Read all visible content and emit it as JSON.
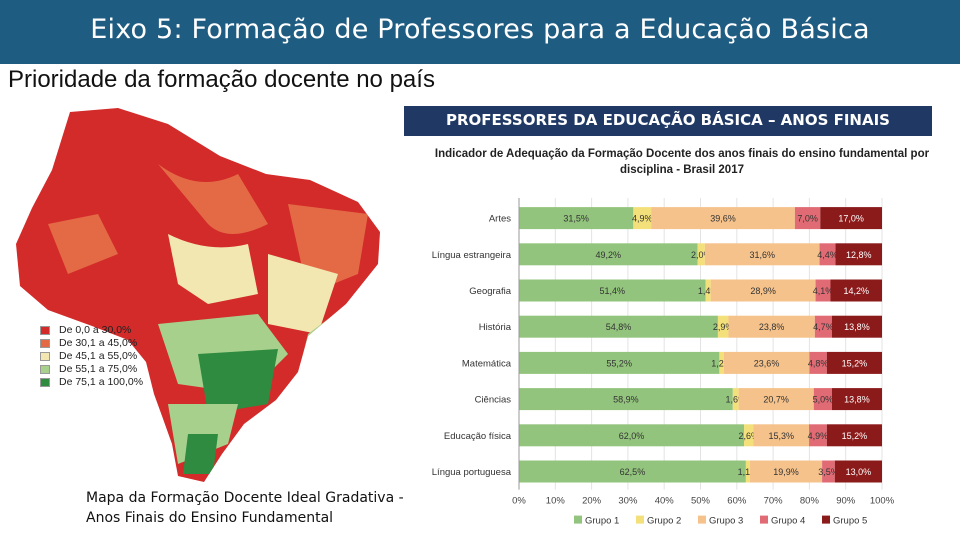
{
  "header": {
    "title": "Eixo 5: Formação de Professores para a Educação Básica",
    "subtitle": "Prioridade da formação docente no país"
  },
  "map": {
    "caption_line1": "Mapa da Formação Docente Ideal  Gradativa -",
    "caption_line2": "Anos Finais do Ensino Fundamental",
    "legend": [
      {
        "label": "De 0,0 a 30,0%",
        "color": "#d32a2a"
      },
      {
        "label": "De 30,1 a 45,0%",
        "color": "#e46a45"
      },
      {
        "label": "De 45,1 a 55,0%",
        "color": "#f2e7b0"
      },
      {
        "label": "De 55,1 a 75,0%",
        "color": "#a8d08d"
      },
      {
        "label": "De 75,1 a 100,0%",
        "color": "#2e8b3f"
      }
    ]
  },
  "chart_data": {
    "type": "bar",
    "orientation": "horizontal",
    "stacked": true,
    "banner": "PROFESSORES DA EDUCAÇÃO BÁSICA – ANOS FINAIS",
    "title_line1": "Indicador de Adequação da Formação Docente dos anos finais do ensino fundamental por",
    "title_line2": "disciplina - Brasil 2017",
    "categories": [
      "Artes",
      "Língua estrangeira",
      "Geografia",
      "História",
      "Matemática",
      "Ciências",
      "Educação física",
      "Língua portuguesa"
    ],
    "xlim": [
      0,
      100
    ],
    "xticks": [
      "0%",
      "10%",
      "20%",
      "30%",
      "40%",
      "50%",
      "60%",
      "70%",
      "80%",
      "90%",
      "100%"
    ],
    "legend_position": "bottom",
    "series": [
      {
        "name": "Grupo 1",
        "color": "#93c47d",
        "values": [
          31.5,
          49.2,
          51.4,
          54.8,
          55.2,
          58.9,
          62.0,
          62.5
        ],
        "labels": [
          "31,5%",
          "49,2%",
          "51,4%",
          "54,8%",
          "55,2%",
          "58,9%",
          "62,0%",
          "62,5%"
        ]
      },
      {
        "name": "Grupo 2",
        "color": "#f3e07a",
        "values": [
          4.9,
          2.0,
          1.4,
          2.9,
          1.2,
          1.6,
          2.6,
          1.1
        ],
        "labels": [
          "4,9%",
          "2,0%",
          "1,4%",
          "2,9%",
          "1,2%",
          "1,6%",
          "2,6%",
          "1,1%"
        ]
      },
      {
        "name": "Grupo 3",
        "color": "#f5c28b",
        "values": [
          39.6,
          31.6,
          28.9,
          23.8,
          23.6,
          20.7,
          15.3,
          19.9
        ],
        "labels": [
          "39,6%",
          "31,6%",
          "28,9%",
          "23,8%",
          "23,6%",
          "20,7%",
          "15,3%",
          "19,9%"
        ]
      },
      {
        "name": "Grupo 4",
        "color": "#e06b74",
        "values": [
          7.0,
          4.4,
          4.1,
          4.7,
          4.8,
          5.0,
          4.9,
          3.5
        ],
        "labels": [
          "7,0%",
          "4,4%",
          "4,1%",
          "4,7%",
          "4,8%",
          "5,0%",
          "4,9%",
          "3,5%"
        ]
      },
      {
        "name": "Grupo 5",
        "color": "#8b1a1a",
        "values": [
          17.0,
          12.8,
          14.2,
          13.8,
          15.2,
          13.8,
          15.2,
          13.0
        ],
        "labels": [
          "17,0%",
          "12,8%",
          "14,2%",
          "13,8%",
          "15,2%",
          "13,8%",
          "15,2%",
          "13,0%"
        ]
      }
    ]
  }
}
